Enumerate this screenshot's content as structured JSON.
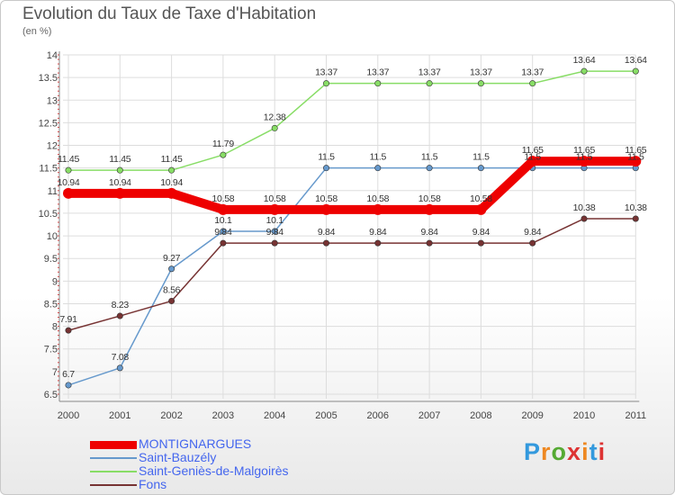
{
  "header": {
    "title": "Evolution du Taux de Taxe d'Habitation",
    "subtitle": "(en %)"
  },
  "logo": {
    "text": "Proxiti",
    "colors": [
      "#3399dd",
      "#ee8822",
      "#55aa33",
      "#dd3333",
      "#ee8822",
      "#3399dd",
      "#dd3333"
    ]
  },
  "chart_data": {
    "type": "line",
    "categories": [
      "2000",
      "2001",
      "2002",
      "2003",
      "2004",
      "2005",
      "2006",
      "2007",
      "2008",
      "2009",
      "2010",
      "2011"
    ],
    "ylim": [
      6.5,
      14
    ],
    "yticks": [
      "6.5",
      "7",
      "7.5",
      "8",
      "8.5",
      "9",
      "9.5",
      "10",
      "10.5",
      "11",
      "11.5",
      "12",
      "12.5",
      "13",
      "13.5",
      "14"
    ],
    "grid": true,
    "legend": "bottom-left",
    "series": [
      {
        "name": "MONTIGNARGUES",
        "color": "#ee0000",
        "values": [
          10.94,
          10.94,
          10.94,
          10.58,
          10.58,
          10.58,
          10.58,
          10.58,
          10.58,
          11.65,
          11.65,
          11.65
        ],
        "labels": [
          "10.94",
          "10.94",
          "10.94",
          "10.58",
          "10.58",
          "10.58",
          "10.58",
          "10.58",
          "10.58",
          "11.65",
          "11.65",
          "11.65"
        ]
      },
      {
        "name": "Saint-Bauzély",
        "color": "#6699cc",
        "values": [
          6.7,
          7.08,
          9.27,
          10.1,
          10.1,
          11.5,
          11.5,
          11.5,
          11.5,
          11.5,
          11.5,
          11.5
        ],
        "labels": [
          "6.7",
          "7.08",
          "9.27",
          "10.1",
          "10.1",
          "11.5",
          "11.5",
          "11.5",
          "11.5",
          "11.5",
          "11.5",
          "11.5"
        ]
      },
      {
        "name": "Saint-Geniès-de-Malgoirès",
        "color": "#88dd66",
        "values": [
          11.45,
          11.45,
          11.45,
          11.79,
          12.38,
          13.37,
          13.37,
          13.37,
          13.37,
          13.37,
          13.64,
          13.64
        ],
        "labels": [
          "11.45",
          "11.45",
          "11.45",
          "11.79",
          "12.38",
          "13.37",
          "13.37",
          "13.37",
          "13.37",
          "13.37",
          "13.64",
          "13.64"
        ]
      },
      {
        "name": "Fons",
        "color": "#773333",
        "values": [
          7.91,
          8.23,
          8.56,
          9.84,
          9.84,
          9.84,
          9.84,
          9.84,
          9.84,
          9.84,
          10.38,
          10.38
        ],
        "labels": [
          "7.91",
          "8.23",
          "8.56",
          "9.84",
          "9.84",
          "9.84",
          "9.84",
          "9.84",
          "9.84",
          "9.84",
          "10.38",
          "10.38"
        ]
      }
    ]
  }
}
